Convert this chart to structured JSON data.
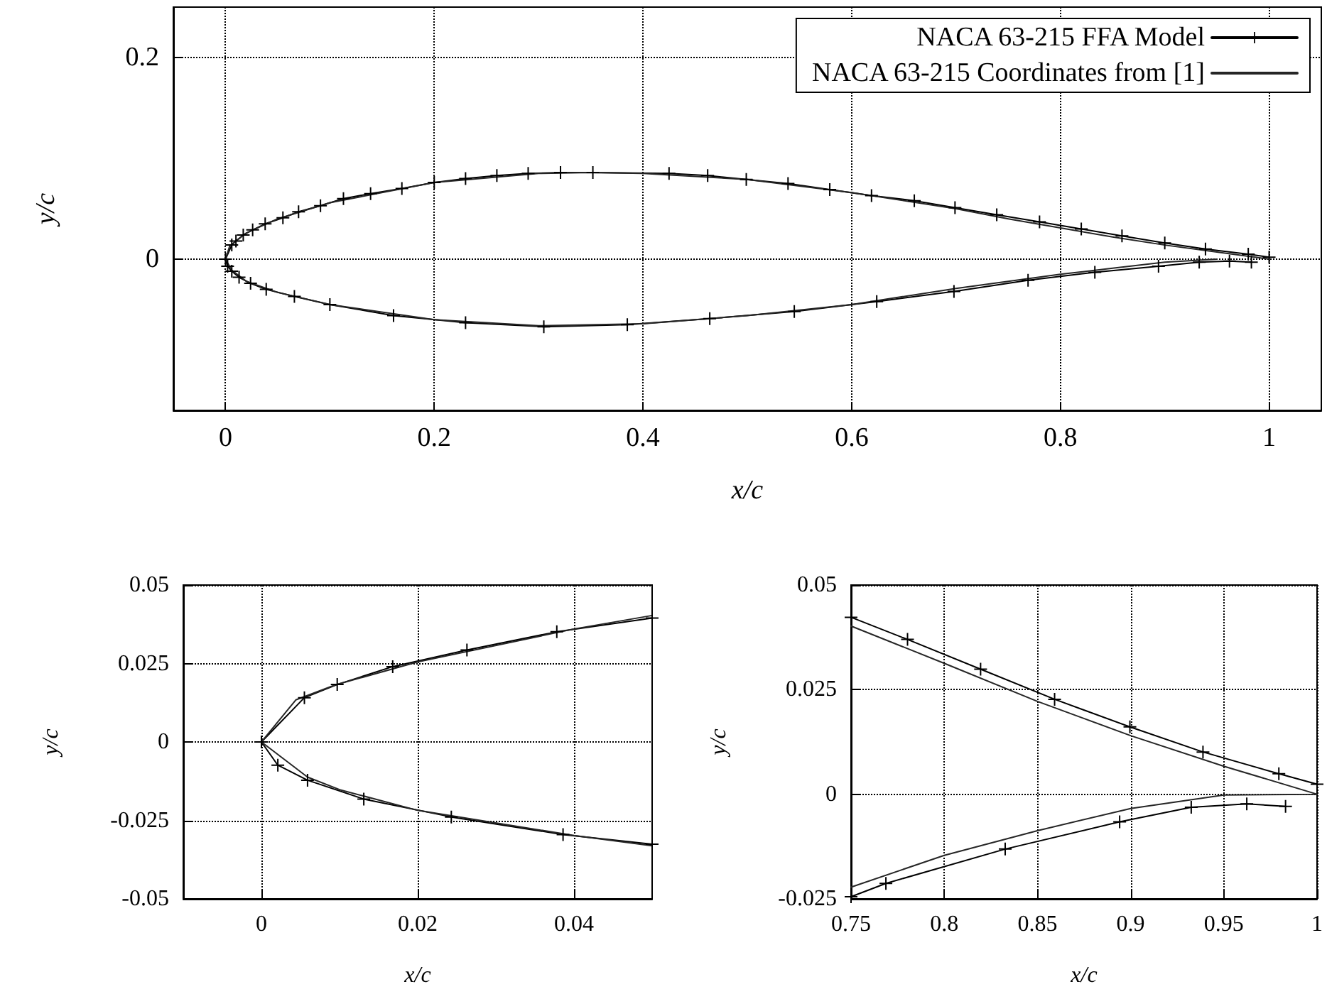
{
  "chart_data": [
    {
      "type": "line",
      "xlabel": "x/c",
      "ylabel": "y/c",
      "xlim": [
        -0.05,
        1.05
      ],
      "ylim": [
        -0.15,
        0.25
      ],
      "xticks": [
        0,
        0.2,
        0.4,
        0.6,
        0.8,
        1
      ],
      "yticks": [
        0,
        0.2
      ],
      "grid": true,
      "legend": "top right",
      "line_style": "solid",
      "series": [
        {
          "name": "NACA 63-215 FFA Model",
          "color": "#000000",
          "marker": "cross",
          "x": [
            0.983,
            0.962,
            0.933,
            0.894,
            0.833,
            0.769,
            0.698,
            0.624,
            0.545,
            0.464,
            0.385,
            0.305,
            0.23,
            0.161,
            0.1,
            0.066,
            0.039,
            0.024,
            0.013,
            0.006,
            0.002,
            0,
            0.006,
            0.01,
            0.017,
            0.026,
            0.038,
            0.055,
            0.07,
            0.091,
            0.113,
            0.139,
            0.169,
            0.2,
            0.23,
            0.26,
            0.29,
            0.321,
            0.352,
            0.425,
            0.462,
            0.499,
            0.539,
            0.579,
            0.619,
            0.66,
            0.699,
            0.739,
            0.78,
            0.82,
            0.859,
            0.9,
            0.939,
            0.98,
            1.0
          ],
          "values": [
            -0.003,
            -0.002,
            -0.003,
            -0.007,
            -0.013,
            -0.021,
            -0.032,
            -0.042,
            -0.052,
            -0.059,
            -0.065,
            -0.067,
            -0.063,
            -0.056,
            -0.045,
            -0.037,
            -0.03,
            -0.024,
            -0.018,
            -0.012,
            -0.007,
            0,
            0.014,
            0.018,
            0.024,
            0.029,
            0.035,
            0.041,
            0.047,
            0.053,
            0.06,
            0.065,
            0.07,
            0.076,
            0.08,
            0.083,
            0.085,
            0.086,
            0.086,
            0.085,
            0.083,
            0.079,
            0.075,
            0.069,
            0.063,
            0.058,
            0.051,
            0.044,
            0.037,
            0.03,
            0.023,
            0.016,
            0.01,
            0.005,
            0.002
          ]
        },
        {
          "name": "NACA 63-215 Coordinates from [1]",
          "color": "#262626",
          "marker": "none",
          "x": [
            1,
            0.95,
            0.9,
            0.85,
            0.8,
            0.75,
            0.7,
            0.6,
            0.5,
            0.4,
            0.35,
            0.3,
            0.2,
            0.1,
            0.05,
            0.02,
            0.004,
            0,
            0.006,
            0.02,
            0.05,
            0.1,
            0.2,
            0.3,
            0.4,
            0.5,
            0.6,
            0.7,
            0.75,
            0.8,
            0.85,
            0.9,
            0.95
          ],
          "values": [
            0,
            0.007,
            0.014,
            0.022,
            0.031,
            0.04,
            0.05,
            0.066,
            0.079,
            0.085,
            0.086,
            0.085,
            0.076,
            0.056,
            0.04,
            0.026,
            0.013,
            0,
            -0.011,
            -0.022,
            -0.033,
            -0.045,
            -0.06,
            -0.066,
            -0.064,
            -0.056,
            -0.045,
            -0.029,
            -0.022,
            -0.015,
            -0.009,
            -0.003,
            0
          ]
        }
      ]
    },
    {
      "type": "line",
      "xlabel": "x/c",
      "ylabel": "y/c",
      "xlim": [
        -0.01,
        0.05
      ],
      "ylim": [
        -0.05,
        0.05
      ],
      "xticks": [
        0,
        0.02,
        0.04
      ],
      "yticks": [
        -0.05,
        -0.025,
        0,
        0.025,
        0.05
      ],
      "grid": true,
      "line_style": "solid",
      "series": [
        {
          "color": "#000000",
          "marker": "cross",
          "x": [
            0.05,
            0.0386,
            0.0243,
            0.0131,
            0.0059,
            0.0021,
            0,
            0.0055,
            0.0097,
            0.0168,
            0.0263,
            0.0378,
            0.05
          ],
          "values": [
            -0.0326,
            -0.0295,
            -0.0239,
            -0.0182,
            -0.0122,
            -0.0074,
            0,
            0.0141,
            0.0183,
            0.024,
            0.0293,
            0.0351,
            0.0395
          ]
        },
        {
          "color": "#262626",
          "marker": "none",
          "x": [
            0.05,
            0.04,
            0.02,
            0.01,
            0.0059,
            0,
            0.0044,
            0.0095,
            0.02,
            0.04,
            0.05
          ],
          "values": [
            -0.0331,
            -0.0298,
            -0.0218,
            -0.0152,
            -0.0112,
            0,
            0.0134,
            0.0182,
            0.0255,
            0.036,
            0.0403
          ]
        }
      ]
    },
    {
      "type": "line",
      "xlabel": "x/c",
      "ylabel": "y/c",
      "xlim": [
        0.75,
        1
      ],
      "ylim": [
        -0.025,
        0.05
      ],
      "xticks": [
        0.75,
        0.8,
        0.85,
        0.9,
        0.95,
        1
      ],
      "yticks": [
        -0.025,
        0,
        0.025,
        0.05
      ],
      "grid": true,
      "line_style": "solid",
      "series": [
        {
          "color": "#000000",
          "marker": "cross",
          "x": [
            0.9831,
            0.9623,
            0.9325,
            0.8941,
            0.8327,
            0.7687,
            0.75
          ],
          "values": [
            -0.0029,
            -0.0023,
            -0.0031,
            -0.0066,
            -0.0131,
            -0.0213,
            -0.0245
          ]
        },
        {
          "color": "#000000",
          "marker": "cross",
          "x": [
            0.75,
            0.7803,
            0.8195,
            0.8592,
            0.8996,
            0.9388,
            0.9795,
            1.0
          ],
          "values": [
            0.0423,
            0.037,
            0.0299,
            0.0227,
            0.0161,
            0.0101,
            0.0049,
            0.0024
          ]
        },
        {
          "color": "#262626",
          "marker": "none",
          "x": [
            0.75,
            0.8,
            0.85,
            0.9,
            0.95,
            1,
            0.95,
            0.9,
            0.85,
            0.8,
            0.75
          ],
          "values": [
            -0.0222,
            -0.0146,
            -0.0087,
            -0.0034,
            -0.0002,
            0,
            0.0067,
            0.014,
            0.0222,
            0.0313,
            0.0402
          ]
        }
      ]
    }
  ]
}
